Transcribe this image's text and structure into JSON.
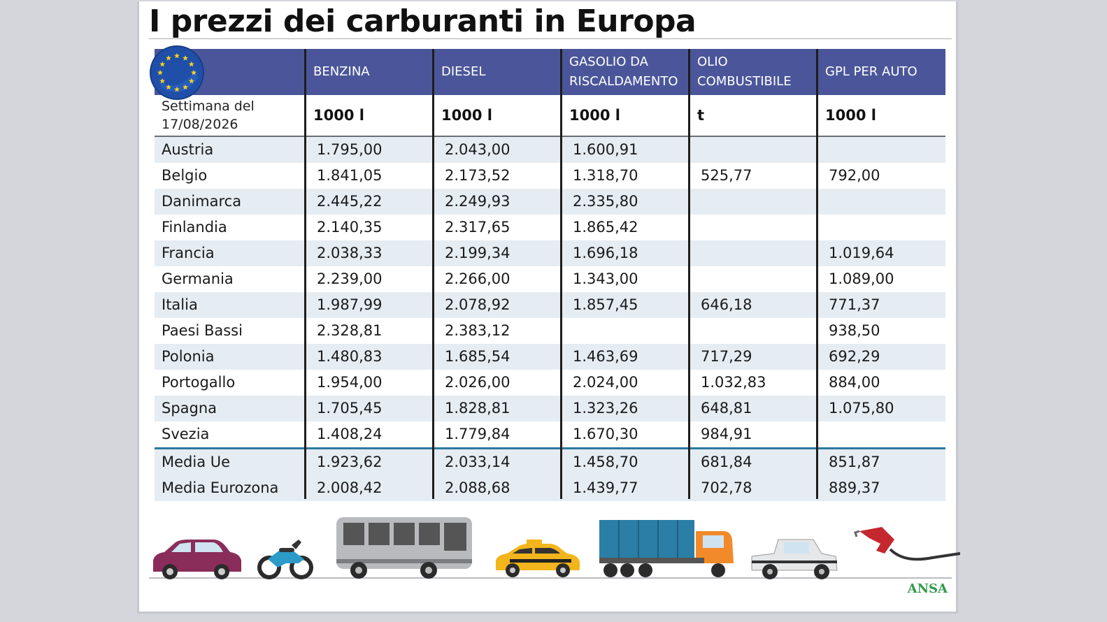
{
  "title": "I prezzi dei carburanti in Europa",
  "header": {
    "columns": [
      "BENZINA",
      "DIESEL",
      "GASOLIO DA\nRISCALDAMENTO",
      "OLIO\nCOMBUSTIBILE",
      "GPL PER AUTO"
    ]
  },
  "week_label": "Settimana del\n17/08/2026",
  "units": [
    "1000 l",
    "1000 l",
    "1000 l",
    "t",
    "1000 l"
  ],
  "chart_data": {
    "type": "table",
    "title": "I prezzi dei carburanti in Europa",
    "columns": [
      "BENZINA",
      "DIESEL",
      "GASOLIO DA RISCALDAMENTO",
      "OLIO COMBUSTIBILE",
      "GPL PER AUTO"
    ],
    "units": [
      "1000 l",
      "1000 l",
      "1000 l",
      "t",
      "1000 l"
    ],
    "rows": [
      {
        "country": "Austria",
        "values": [
          "1.795,00",
          "2.043,00",
          "1.600,91",
          "",
          ""
        ]
      },
      {
        "country": "Belgio",
        "values": [
          "1.841,05",
          "2.173,52",
          "1.318,70",
          "525,77",
          "792,00"
        ]
      },
      {
        "country": "Danimarca",
        "values": [
          "2.445,22",
          "2.249,93",
          "2.335,80",
          "",
          ""
        ]
      },
      {
        "country": "Finlandia",
        "values": [
          "2.140,35",
          "2.317,65",
          "1.865,42",
          "",
          ""
        ]
      },
      {
        "country": "Francia",
        "values": [
          "2.038,33",
          "2.199,34",
          "1.696,18",
          "",
          "1.019,64"
        ]
      },
      {
        "country": "Germania",
        "values": [
          "2.239,00",
          "2.266,00",
          "1.343,00",
          "",
          "1.089,00"
        ]
      },
      {
        "country": "Italia",
        "values": [
          "1.987,99",
          "2.078,92",
          "1.857,45",
          "646,18",
          "771,37"
        ]
      },
      {
        "country": "Paesi Bassi",
        "values": [
          "2.328,81",
          "2.383,12",
          "",
          "",
          "938,50"
        ]
      },
      {
        "country": "Polonia",
        "values": [
          "1.480,83",
          "1.685,54",
          "1.463,69",
          "717,29",
          "692,29"
        ]
      },
      {
        "country": "Portogallo",
        "values": [
          "1.954,00",
          "2.026,00",
          "2.024,00",
          "1.032,83",
          "884,00"
        ]
      },
      {
        "country": "Spagna",
        "values": [
          "1.705,45",
          "1.828,81",
          "1.323,26",
          "648,81",
          "1.075,80"
        ]
      },
      {
        "country": "Svezia",
        "values": [
          "1.408,24",
          "1.779,84",
          "1.670,30",
          "984,91",
          ""
        ]
      }
    ],
    "summary_rows": [
      {
        "country": "Media Ue",
        "values": [
          "1.923,62",
          "2.033,14",
          "1.458,70",
          "681,84",
          "851,87"
        ]
      },
      {
        "country": "Media Eurozona",
        "values": [
          "2.008,42",
          "2.088,68",
          "1.439,77",
          "702,78",
          "889,37"
        ]
      }
    ]
  },
  "icons": [
    "eu-flag-icon",
    "car-icon",
    "motorcycle-icon",
    "bus-icon",
    "taxi-icon",
    "truck-icon",
    "jeep-icon",
    "fuel-nozzle-icon"
  ],
  "colors": {
    "header_bg": "#4b569a",
    "row_alt": "#e5ecf2",
    "separator": "#2a7a9e",
    "ansa_green": "#2f9a4a"
  },
  "footer": {
    "brand": "ANSA"
  }
}
